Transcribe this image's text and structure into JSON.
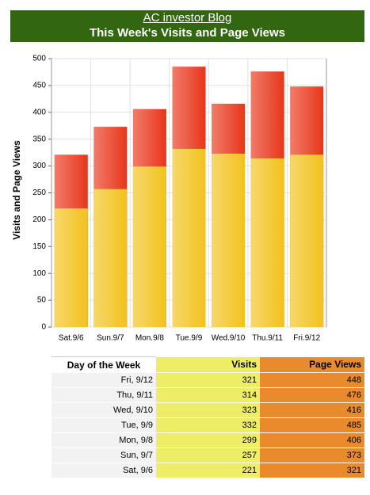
{
  "chart_data": {
    "type": "bar",
    "title": "AC investor Blog",
    "subtitle": "This Week's Visits and Page Views",
    "y_label": "Visits and Page Views",
    "categories": [
      "Sat.9/6",
      "Sun.9/7",
      "Mon.9/8",
      "Tue.9/9",
      "Wed.9/10",
      "Thu.9/11",
      "Fri.9/12"
    ],
    "series": [
      {
        "name": "Page Views",
        "color": "#e8361a",
        "values": [
          321,
          373,
          406,
          485,
          416,
          476,
          448
        ]
      },
      {
        "name": "Visits",
        "color": "#f3c21c",
        "values": [
          221,
          257,
          299,
          332,
          323,
          314,
          321
        ]
      }
    ],
    "ylim": [
      0,
      500
    ],
    "yticks": [
      0,
      50,
      100,
      150,
      200,
      250,
      300,
      350,
      400,
      450,
      500
    ],
    "grid": true
  },
  "table": {
    "header": [
      "Day of the Week",
      "Visits",
      "Page Views"
    ],
    "rows": [
      [
        "Fri, 9/12",
        321,
        448
      ],
      [
        "Thu, 9/11",
        314,
        476
      ],
      [
        "Wed, 9/10",
        323,
        416
      ],
      [
        "Tue, 9/9",
        332,
        485
      ],
      [
        "Mon, 9/8",
        299,
        406
      ],
      [
        "Sun, 9/7",
        257,
        373
      ],
      [
        "Sat, 9/6",
        221,
        321
      ]
    ]
  }
}
